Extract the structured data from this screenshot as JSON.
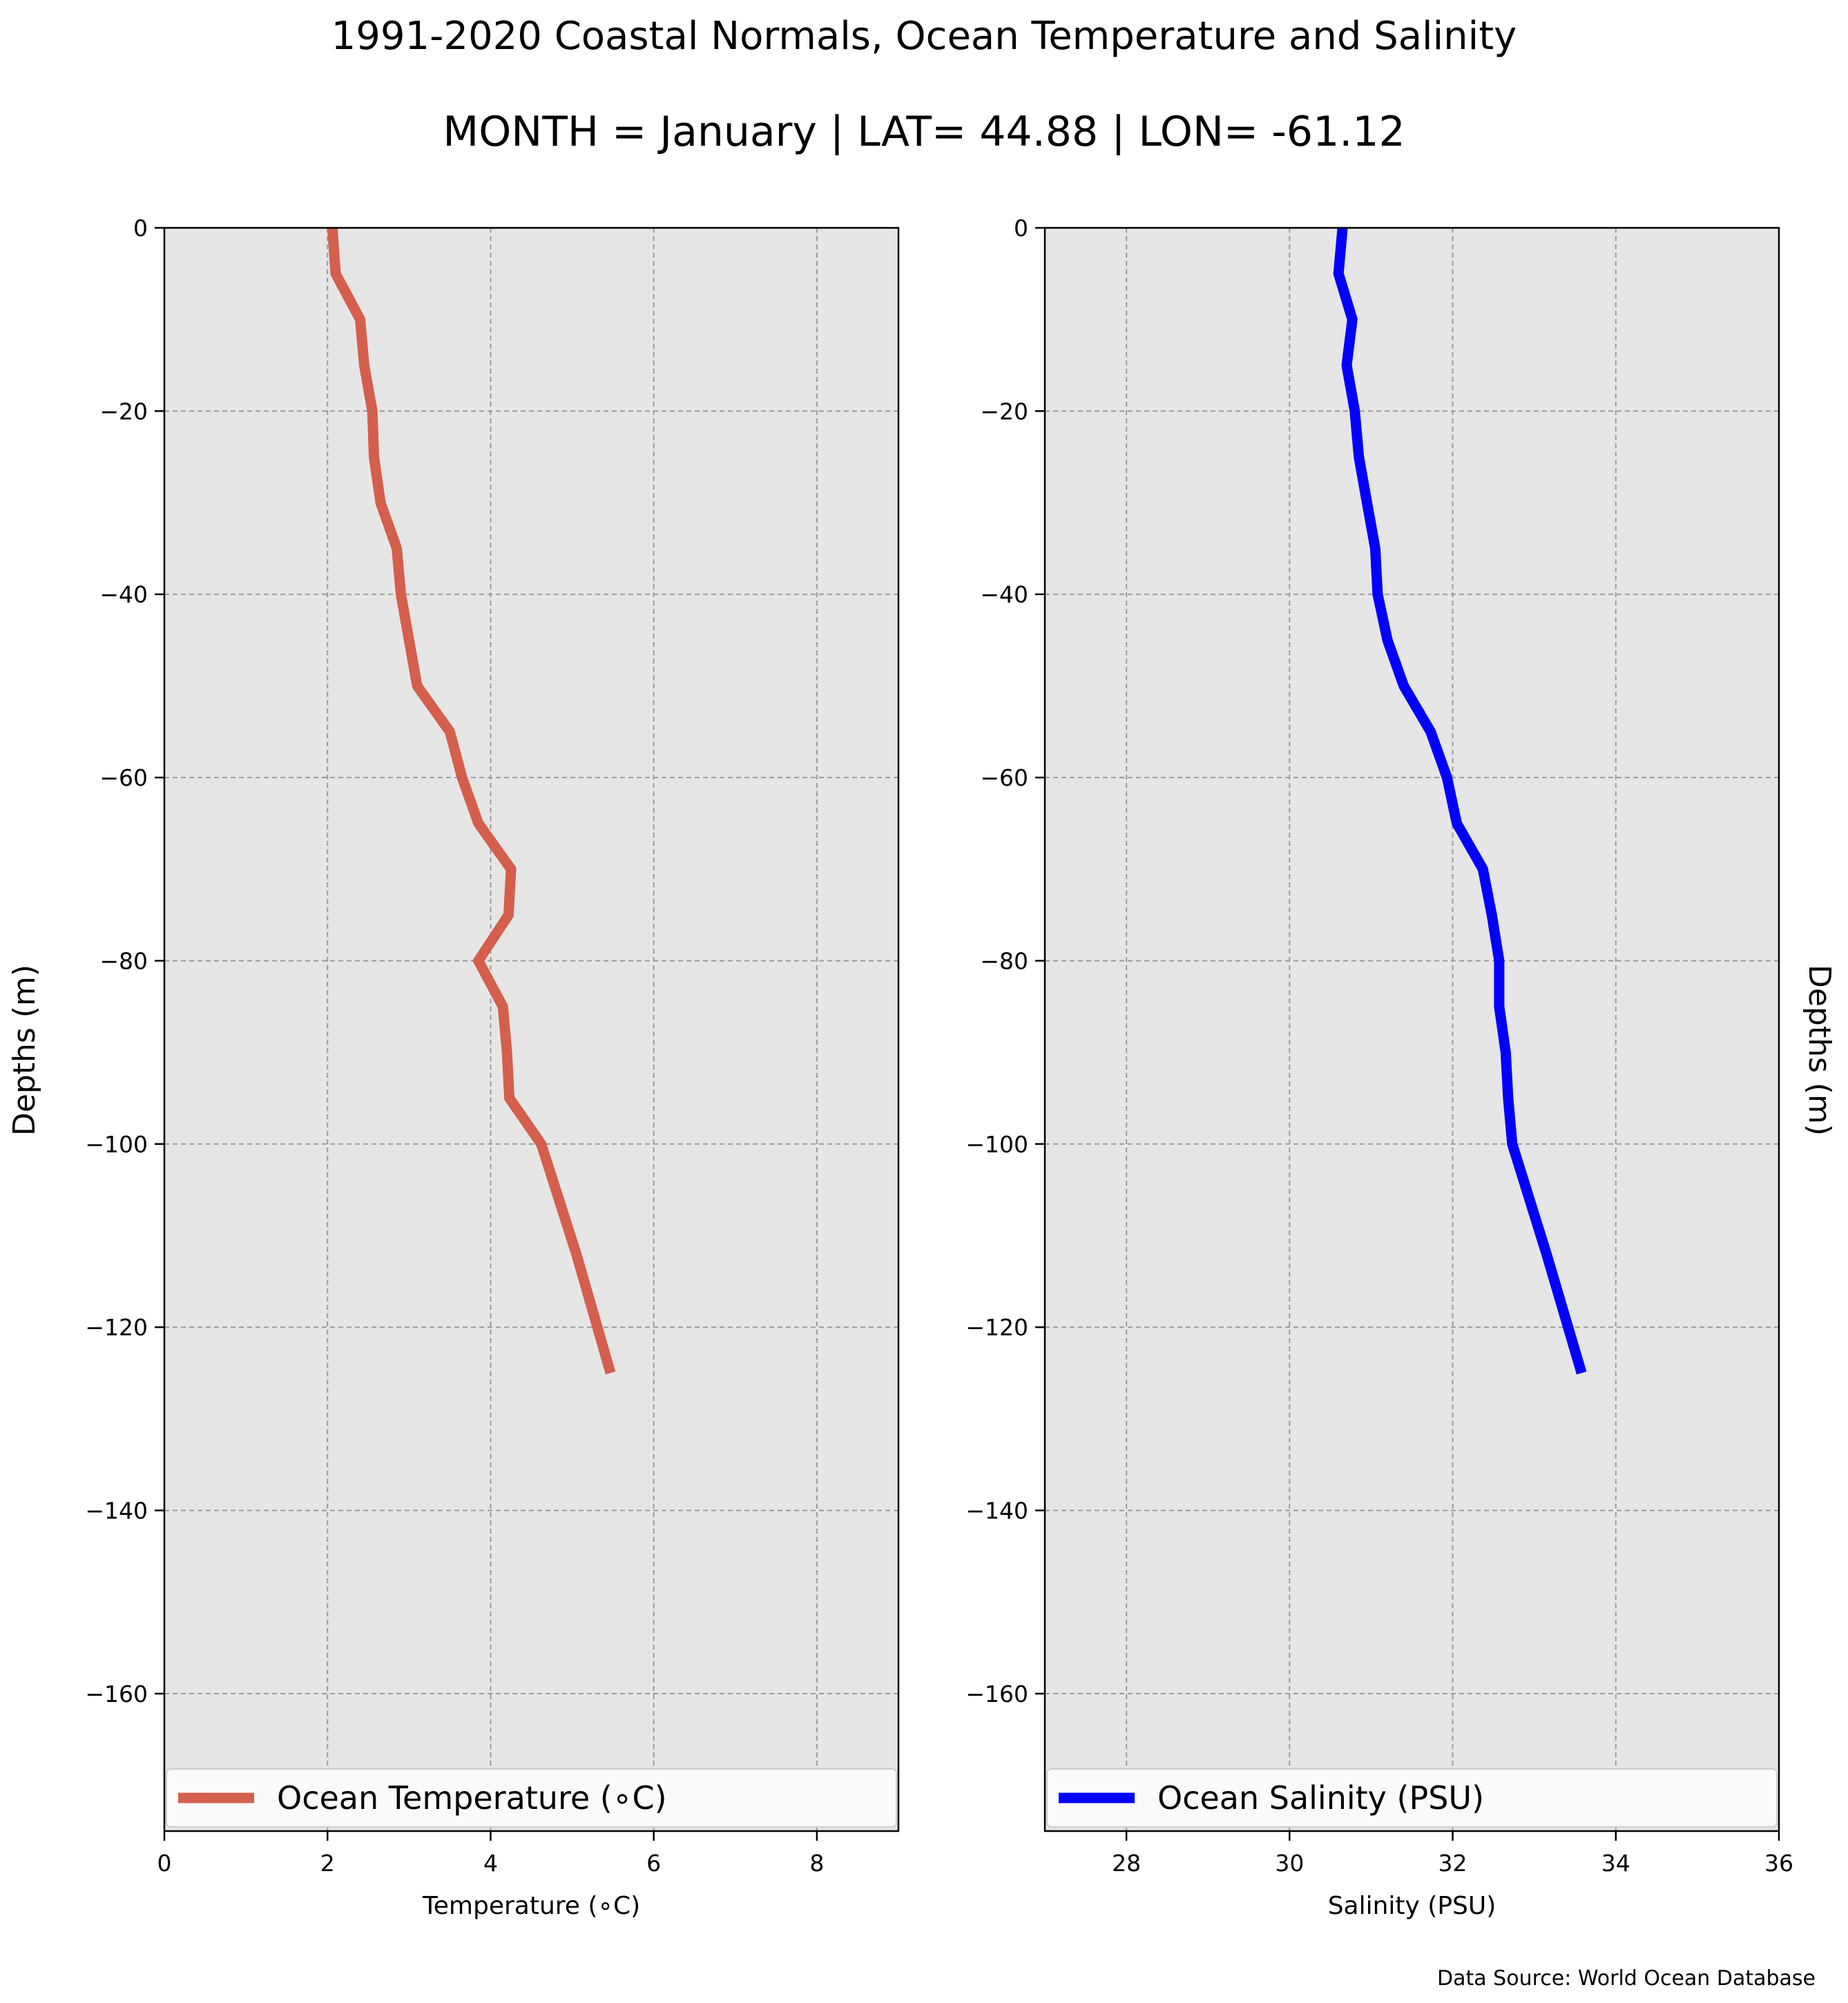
{
  "title": "1991-2020 Coastal Normals, Ocean Temperature and Salinity",
  "subtitle": "MONTH = January | LAT= 44.88 | LON= -61.12",
  "source": "Data Source: World Ocean Database",
  "chart_data": [
    {
      "type": "line",
      "xlabel": "Temperature (∘C)",
      "ylabel": "Depths (m)",
      "xlim": [
        0,
        9
      ],
      "ylim": [
        -175,
        0
      ],
      "xticks": [
        0,
        2,
        4,
        6,
        8
      ],
      "xtick_labels": [
        "0",
        "2",
        "4",
        "6",
        "8"
      ],
      "yticks": [
        0,
        -20,
        -40,
        -60,
        -80,
        -100,
        -120,
        -140,
        -160
      ],
      "ytick_labels": [
        "0",
        "−20",
        "−40",
        "−60",
        "−80",
        "−100",
        "−120",
        "−140",
        "−160"
      ],
      "grid": true,
      "legend_position": "bottom",
      "series": [
        {
          "name": "Ocean Temperature (∘C)",
          "color": "#d45f4c",
          "x": [
            2.06,
            2.1,
            2.4,
            2.45,
            2.55,
            2.57,
            2.65,
            2.85,
            2.9,
            3.0,
            3.1,
            3.5,
            3.65,
            3.85,
            4.25,
            4.22,
            3.85,
            4.15,
            4.2,
            4.23,
            4.62,
            5.05,
            5.47
          ],
          "y": [
            0,
            -5,
            -10,
            -15,
            -20,
            -25,
            -30,
            -35,
            -40,
            -45,
            -50,
            -55,
            -60,
            -65,
            -70,
            -75,
            -80,
            -85,
            -90,
            -95,
            -100,
            -112,
            -125
          ]
        }
      ]
    },
    {
      "type": "line",
      "xlabel": "Salinity (PSU)",
      "ylabel": "Depths (m)",
      "xlim": [
        27,
        36
      ],
      "ylim": [
        -175,
        0
      ],
      "xticks": [
        28,
        30,
        32,
        34,
        36
      ],
      "xtick_labels": [
        "28",
        "30",
        "32",
        "34",
        "36"
      ],
      "yticks": [
        0,
        -20,
        -40,
        -60,
        -80,
        -100,
        -120,
        -140,
        -160
      ],
      "ytick_labels": [
        "0",
        "−20",
        "−40",
        "−60",
        "−80",
        "−100",
        "−120",
        "−140",
        "−160"
      ],
      "grid": true,
      "legend_position": "bottom",
      "series": [
        {
          "name": "Ocean Salinity (PSU)",
          "color": "#0000ff",
          "x": [
            30.65,
            30.6,
            30.77,
            30.7,
            30.8,
            30.85,
            30.95,
            31.05,
            31.08,
            31.2,
            31.4,
            31.73,
            31.93,
            32.05,
            32.37,
            32.48,
            32.57,
            32.57,
            32.65,
            32.68,
            32.73,
            33.15,
            33.58
          ],
          "y": [
            0,
            -5,
            -10,
            -15,
            -20,
            -25,
            -30,
            -35,
            -40,
            -45,
            -50,
            -55,
            -60,
            -65,
            -70,
            -75,
            -80,
            -85,
            -90,
            -95,
            -100,
            -112,
            -125
          ]
        }
      ]
    }
  ]
}
